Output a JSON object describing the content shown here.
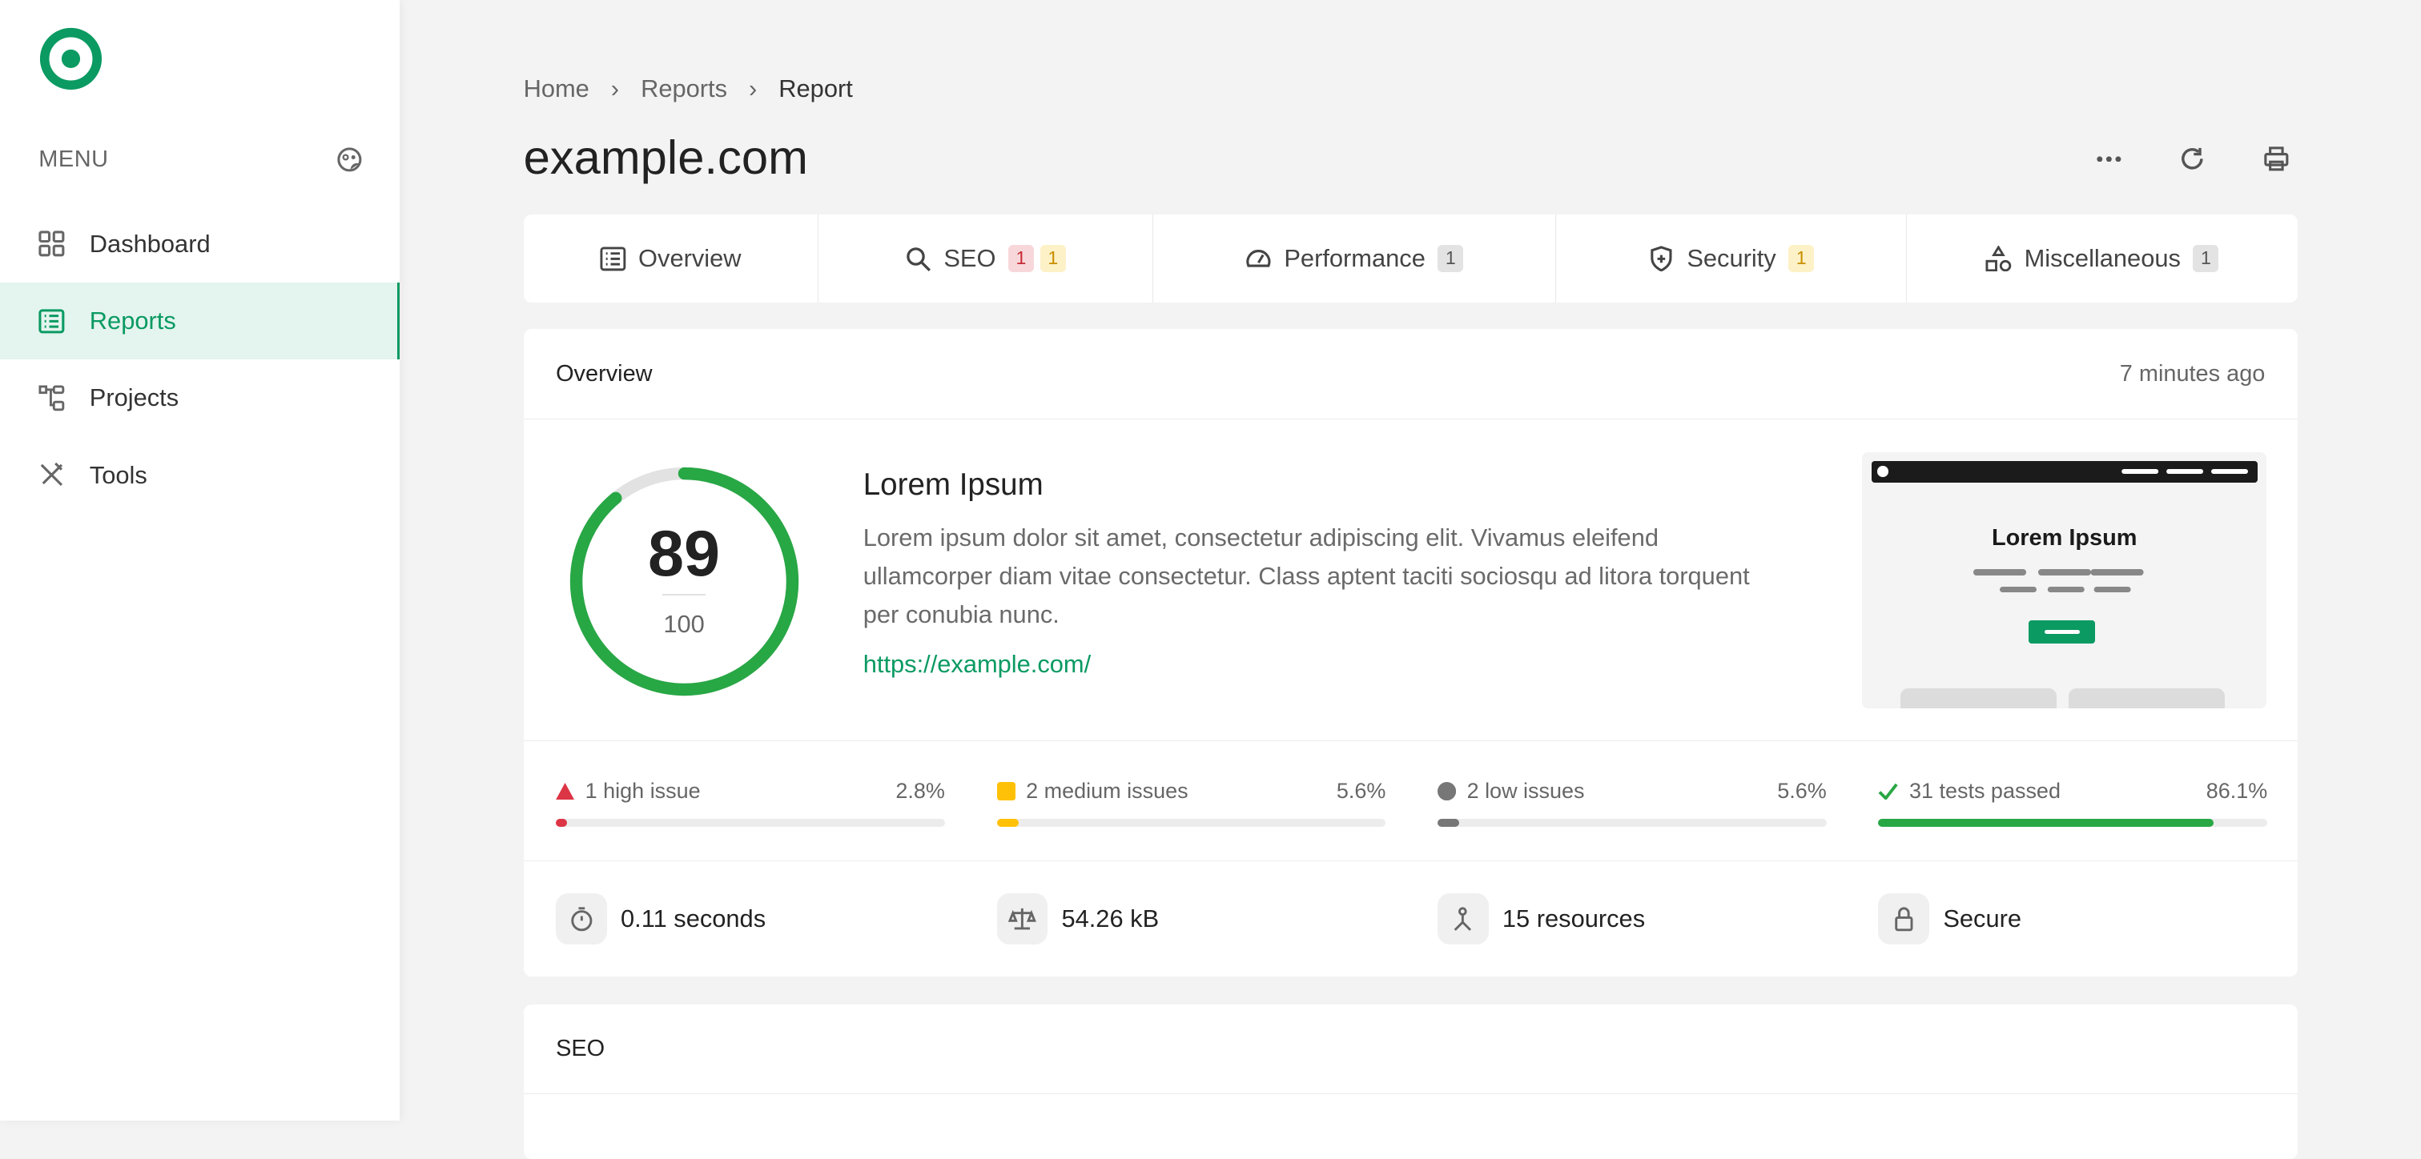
{
  "sidebar": {
    "menu_label": "MENU",
    "items": [
      {
        "label": "Dashboard",
        "icon": "grid-icon"
      },
      {
        "label": "Reports",
        "icon": "list-icon",
        "active": true
      },
      {
        "label": "Projects",
        "icon": "tree-icon"
      },
      {
        "label": "Tools",
        "icon": "tools-icon"
      }
    ]
  },
  "breadcrumb": [
    "Home",
    "Reports",
    "Report"
  ],
  "page_title": "example.com",
  "tabs": [
    {
      "label": "Overview"
    },
    {
      "label": "SEO",
      "badges": [
        "1",
        "1"
      ]
    },
    {
      "label": "Performance",
      "badges": [
        "1"
      ]
    },
    {
      "label": "Security",
      "badges": [
        "1"
      ]
    },
    {
      "label": "Miscellaneous",
      "badges": [
        "1"
      ]
    }
  ],
  "overview": {
    "heading": "Overview",
    "time": "7 minutes ago",
    "score": "89",
    "score_max": "100",
    "score_fraction": 0.89,
    "site_title": "Lorem Ipsum",
    "description": "Lorem ipsum dolor sit amet, consectetur adipiscing elit. Vivamus eleifend ullamcorper diam vitae consectetur. Class aptent taciti sociosqu ad litora torquent per conubia nunc.",
    "url": "https://example.com/",
    "preview_title": "Lorem Ipsum",
    "issues": [
      {
        "label": "1 high issue",
        "pct": "2.8%",
        "value": 2.8,
        "color": "#dc3545"
      },
      {
        "label": "2 medium issues",
        "pct": "5.6%",
        "value": 5.6,
        "color": "#ffc107"
      },
      {
        "label": "2 low issues",
        "pct": "5.6%",
        "value": 5.6,
        "color": "#777777"
      },
      {
        "label": "31 tests passed",
        "pct": "86.1%",
        "value": 86.1,
        "color": "#28a745"
      }
    ],
    "stats": [
      {
        "label": "0.11 seconds",
        "icon": "stopwatch-icon"
      },
      {
        "label": "54.26 kB",
        "icon": "scale-icon"
      },
      {
        "label": "15 resources",
        "icon": "fork-icon"
      },
      {
        "label": "Secure",
        "icon": "lock-icon"
      }
    ]
  },
  "seo": {
    "heading": "SEO"
  },
  "colors": {
    "accent": "#0a9a62",
    "score": "#28a745"
  }
}
